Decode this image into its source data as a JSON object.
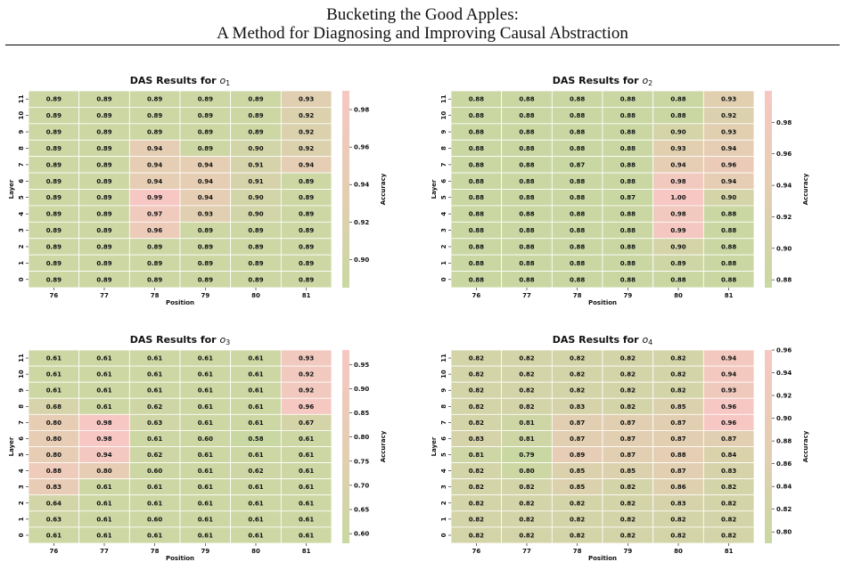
{
  "header": {
    "line1": "Bucketing the Good Apples:",
    "line2": "A Method for Diagnosing and Improving Causal Abstraction"
  },
  "colors": {
    "low": "#c9d8a2",
    "high": "#f7c7c3"
  },
  "chart_data": [
    {
      "type": "heatmap",
      "title_prefix": "DAS Results for ",
      "title_sub": "1",
      "xlabel": "Position",
      "ylabel": "Layer",
      "colorbar_label": "Accuracy",
      "x": [
        "76",
        "77",
        "78",
        "79",
        "80",
        "81"
      ],
      "y": [
        "0",
        "1",
        "2",
        "3",
        "4",
        "5",
        "6",
        "7",
        "8",
        "9",
        "10",
        "11"
      ],
      "vmin": 0.885,
      "vmax": 0.99,
      "cbar_ticks": [
        "0.90",
        "0.92",
        "0.94",
        "0.96",
        "0.98"
      ],
      "values": [
        [
          "0.89",
          "0.89",
          "0.89",
          "0.89",
          "0.89",
          "0.89"
        ],
        [
          "0.89",
          "0.89",
          "0.89",
          "0.89",
          "0.89",
          "0.89"
        ],
        [
          "0.89",
          "0.89",
          "0.89",
          "0.89",
          "0.89",
          "0.89"
        ],
        [
          "0.89",
          "0.89",
          "0.96",
          "0.89",
          "0.89",
          "0.89"
        ],
        [
          "0.89",
          "0.89",
          "0.97",
          "0.93",
          "0.90",
          "0.89"
        ],
        [
          "0.89",
          "0.89",
          "0.99",
          "0.94",
          "0.90",
          "0.89"
        ],
        [
          "0.89",
          "0.89",
          "0.94",
          "0.94",
          "0.91",
          "0.89"
        ],
        [
          "0.89",
          "0.89",
          "0.94",
          "0.94",
          "0.91",
          "0.94"
        ],
        [
          "0.89",
          "0.89",
          "0.94",
          "0.89",
          "0.90",
          "0.92"
        ],
        [
          "0.89",
          "0.89",
          "0.89",
          "0.89",
          "0.89",
          "0.92"
        ],
        [
          "0.89",
          "0.89",
          "0.89",
          "0.89",
          "0.89",
          "0.92"
        ],
        [
          "0.89",
          "0.89",
          "0.89",
          "0.89",
          "0.89",
          "0.93"
        ]
      ]
    },
    {
      "type": "heatmap",
      "title_prefix": "DAS Results for ",
      "title_sub": "2",
      "xlabel": "Position",
      "ylabel": "Layer",
      "colorbar_label": "Accuracy",
      "x": [
        "76",
        "77",
        "78",
        "79",
        "80",
        "81"
      ],
      "y": [
        "0",
        "1",
        "2",
        "3",
        "4",
        "5",
        "6",
        "7",
        "8",
        "9",
        "10",
        "11"
      ],
      "vmin": 0.875,
      "vmax": 1.0,
      "cbar_ticks": [
        "0.88",
        "0.90",
        "0.92",
        "0.94",
        "0.96",
        "0.98"
      ],
      "values": [
        [
          "0.88",
          "0.88",
          "0.88",
          "0.88",
          "0.88",
          "0.88"
        ],
        [
          "0.88",
          "0.88",
          "0.88",
          "0.88",
          "0.89",
          "0.88"
        ],
        [
          "0.88",
          "0.88",
          "0.88",
          "0.88",
          "0.90",
          "0.88"
        ],
        [
          "0.88",
          "0.88",
          "0.88",
          "0.88",
          "0.99",
          "0.88"
        ],
        [
          "0.88",
          "0.88",
          "0.88",
          "0.88",
          "0.98",
          "0.88"
        ],
        [
          "0.88",
          "0.88",
          "0.88",
          "0.87",
          "1.00",
          "0.90"
        ],
        [
          "0.88",
          "0.88",
          "0.88",
          "0.88",
          "0.98",
          "0.94"
        ],
        [
          "0.88",
          "0.88",
          "0.87",
          "0.88",
          "0.94",
          "0.96"
        ],
        [
          "0.88",
          "0.88",
          "0.88",
          "0.88",
          "0.93",
          "0.94"
        ],
        [
          "0.88",
          "0.88",
          "0.88",
          "0.88",
          "0.90",
          "0.93"
        ],
        [
          "0.88",
          "0.88",
          "0.88",
          "0.88",
          "0.88",
          "0.92"
        ],
        [
          "0.88",
          "0.88",
          "0.88",
          "0.88",
          "0.88",
          "0.93"
        ]
      ]
    },
    {
      "type": "heatmap",
      "title_prefix": "DAS Results for ",
      "title_sub": "3",
      "xlabel": "Position",
      "ylabel": "Layer",
      "colorbar_label": "Accuracy",
      "x": [
        "76",
        "77",
        "78",
        "79",
        "80",
        "81"
      ],
      "y": [
        "0",
        "1",
        "2",
        "3",
        "4",
        "5",
        "6",
        "7",
        "8",
        "9",
        "10",
        "11"
      ],
      "vmin": 0.58,
      "vmax": 0.98,
      "cbar_ticks": [
        "0.60",
        "0.65",
        "0.70",
        "0.75",
        "0.80",
        "0.85",
        "0.90",
        "0.95"
      ],
      "values": [
        [
          "0.61",
          "0.61",
          "0.61",
          "0.61",
          "0.61",
          "0.61"
        ],
        [
          "0.63",
          "0.61",
          "0.60",
          "0.61",
          "0.61",
          "0.61"
        ],
        [
          "0.64",
          "0.61",
          "0.61",
          "0.61",
          "0.61",
          "0.61"
        ],
        [
          "0.83",
          "0.61",
          "0.61",
          "0.61",
          "0.61",
          "0.61"
        ],
        [
          "0.88",
          "0.80",
          "0.60",
          "0.61",
          "0.62",
          "0.61"
        ],
        [
          "0.80",
          "0.94",
          "0.62",
          "0.61",
          "0.61",
          "0.61"
        ],
        [
          "0.80",
          "0.98",
          "0.61",
          "0.60",
          "0.58",
          "0.61"
        ],
        [
          "0.80",
          "0.98",
          "0.63",
          "0.61",
          "0.61",
          "0.67"
        ],
        [
          "0.68",
          "0.61",
          "0.62",
          "0.61",
          "0.61",
          "0.96"
        ],
        [
          "0.61",
          "0.61",
          "0.61",
          "0.61",
          "0.61",
          "0.92"
        ],
        [
          "0.61",
          "0.61",
          "0.61",
          "0.61",
          "0.61",
          "0.92"
        ],
        [
          "0.61",
          "0.61",
          "0.61",
          "0.61",
          "0.61",
          "0.93"
        ]
      ]
    },
    {
      "type": "heatmap",
      "title_prefix": "DAS Results for ",
      "title_sub": "4",
      "xlabel": "Position",
      "ylabel": "Layer",
      "colorbar_label": "Accuracy",
      "x": [
        "76",
        "77",
        "78",
        "79",
        "80",
        "81"
      ],
      "y": [
        "0",
        "1",
        "2",
        "3",
        "4",
        "5",
        "6",
        "7",
        "8",
        "9",
        "10",
        "11"
      ],
      "vmin": 0.79,
      "vmax": 0.96,
      "cbar_ticks": [
        "0.80",
        "0.82",
        "0.84",
        "0.86",
        "0.88",
        "0.90",
        "0.92",
        "0.94",
        "0.96"
      ],
      "values": [
        [
          "0.82",
          "0.82",
          "0.82",
          "0.82",
          "0.82",
          "0.82"
        ],
        [
          "0.82",
          "0.82",
          "0.82",
          "0.82",
          "0.82",
          "0.82"
        ],
        [
          "0.82",
          "0.82",
          "0.82",
          "0.82",
          "0.83",
          "0.82"
        ],
        [
          "0.82",
          "0.82",
          "0.85",
          "0.82",
          "0.86",
          "0.82"
        ],
        [
          "0.82",
          "0.80",
          "0.85",
          "0.85",
          "0.87",
          "0.83"
        ],
        [
          "0.81",
          "0.79",
          "0.89",
          "0.87",
          "0.88",
          "0.84"
        ],
        [
          "0.83",
          "0.81",
          "0.87",
          "0.87",
          "0.87",
          "0.87"
        ],
        [
          "0.82",
          "0.81",
          "0.87",
          "0.87",
          "0.87",
          "0.96"
        ],
        [
          "0.82",
          "0.82",
          "0.83",
          "0.82",
          "0.85",
          "0.96"
        ],
        [
          "0.82",
          "0.82",
          "0.82",
          "0.82",
          "0.82",
          "0.93"
        ],
        [
          "0.82",
          "0.82",
          "0.82",
          "0.82",
          "0.82",
          "0.94"
        ],
        [
          "0.82",
          "0.82",
          "0.82",
          "0.82",
          "0.82",
          "0.94"
        ]
      ]
    }
  ]
}
